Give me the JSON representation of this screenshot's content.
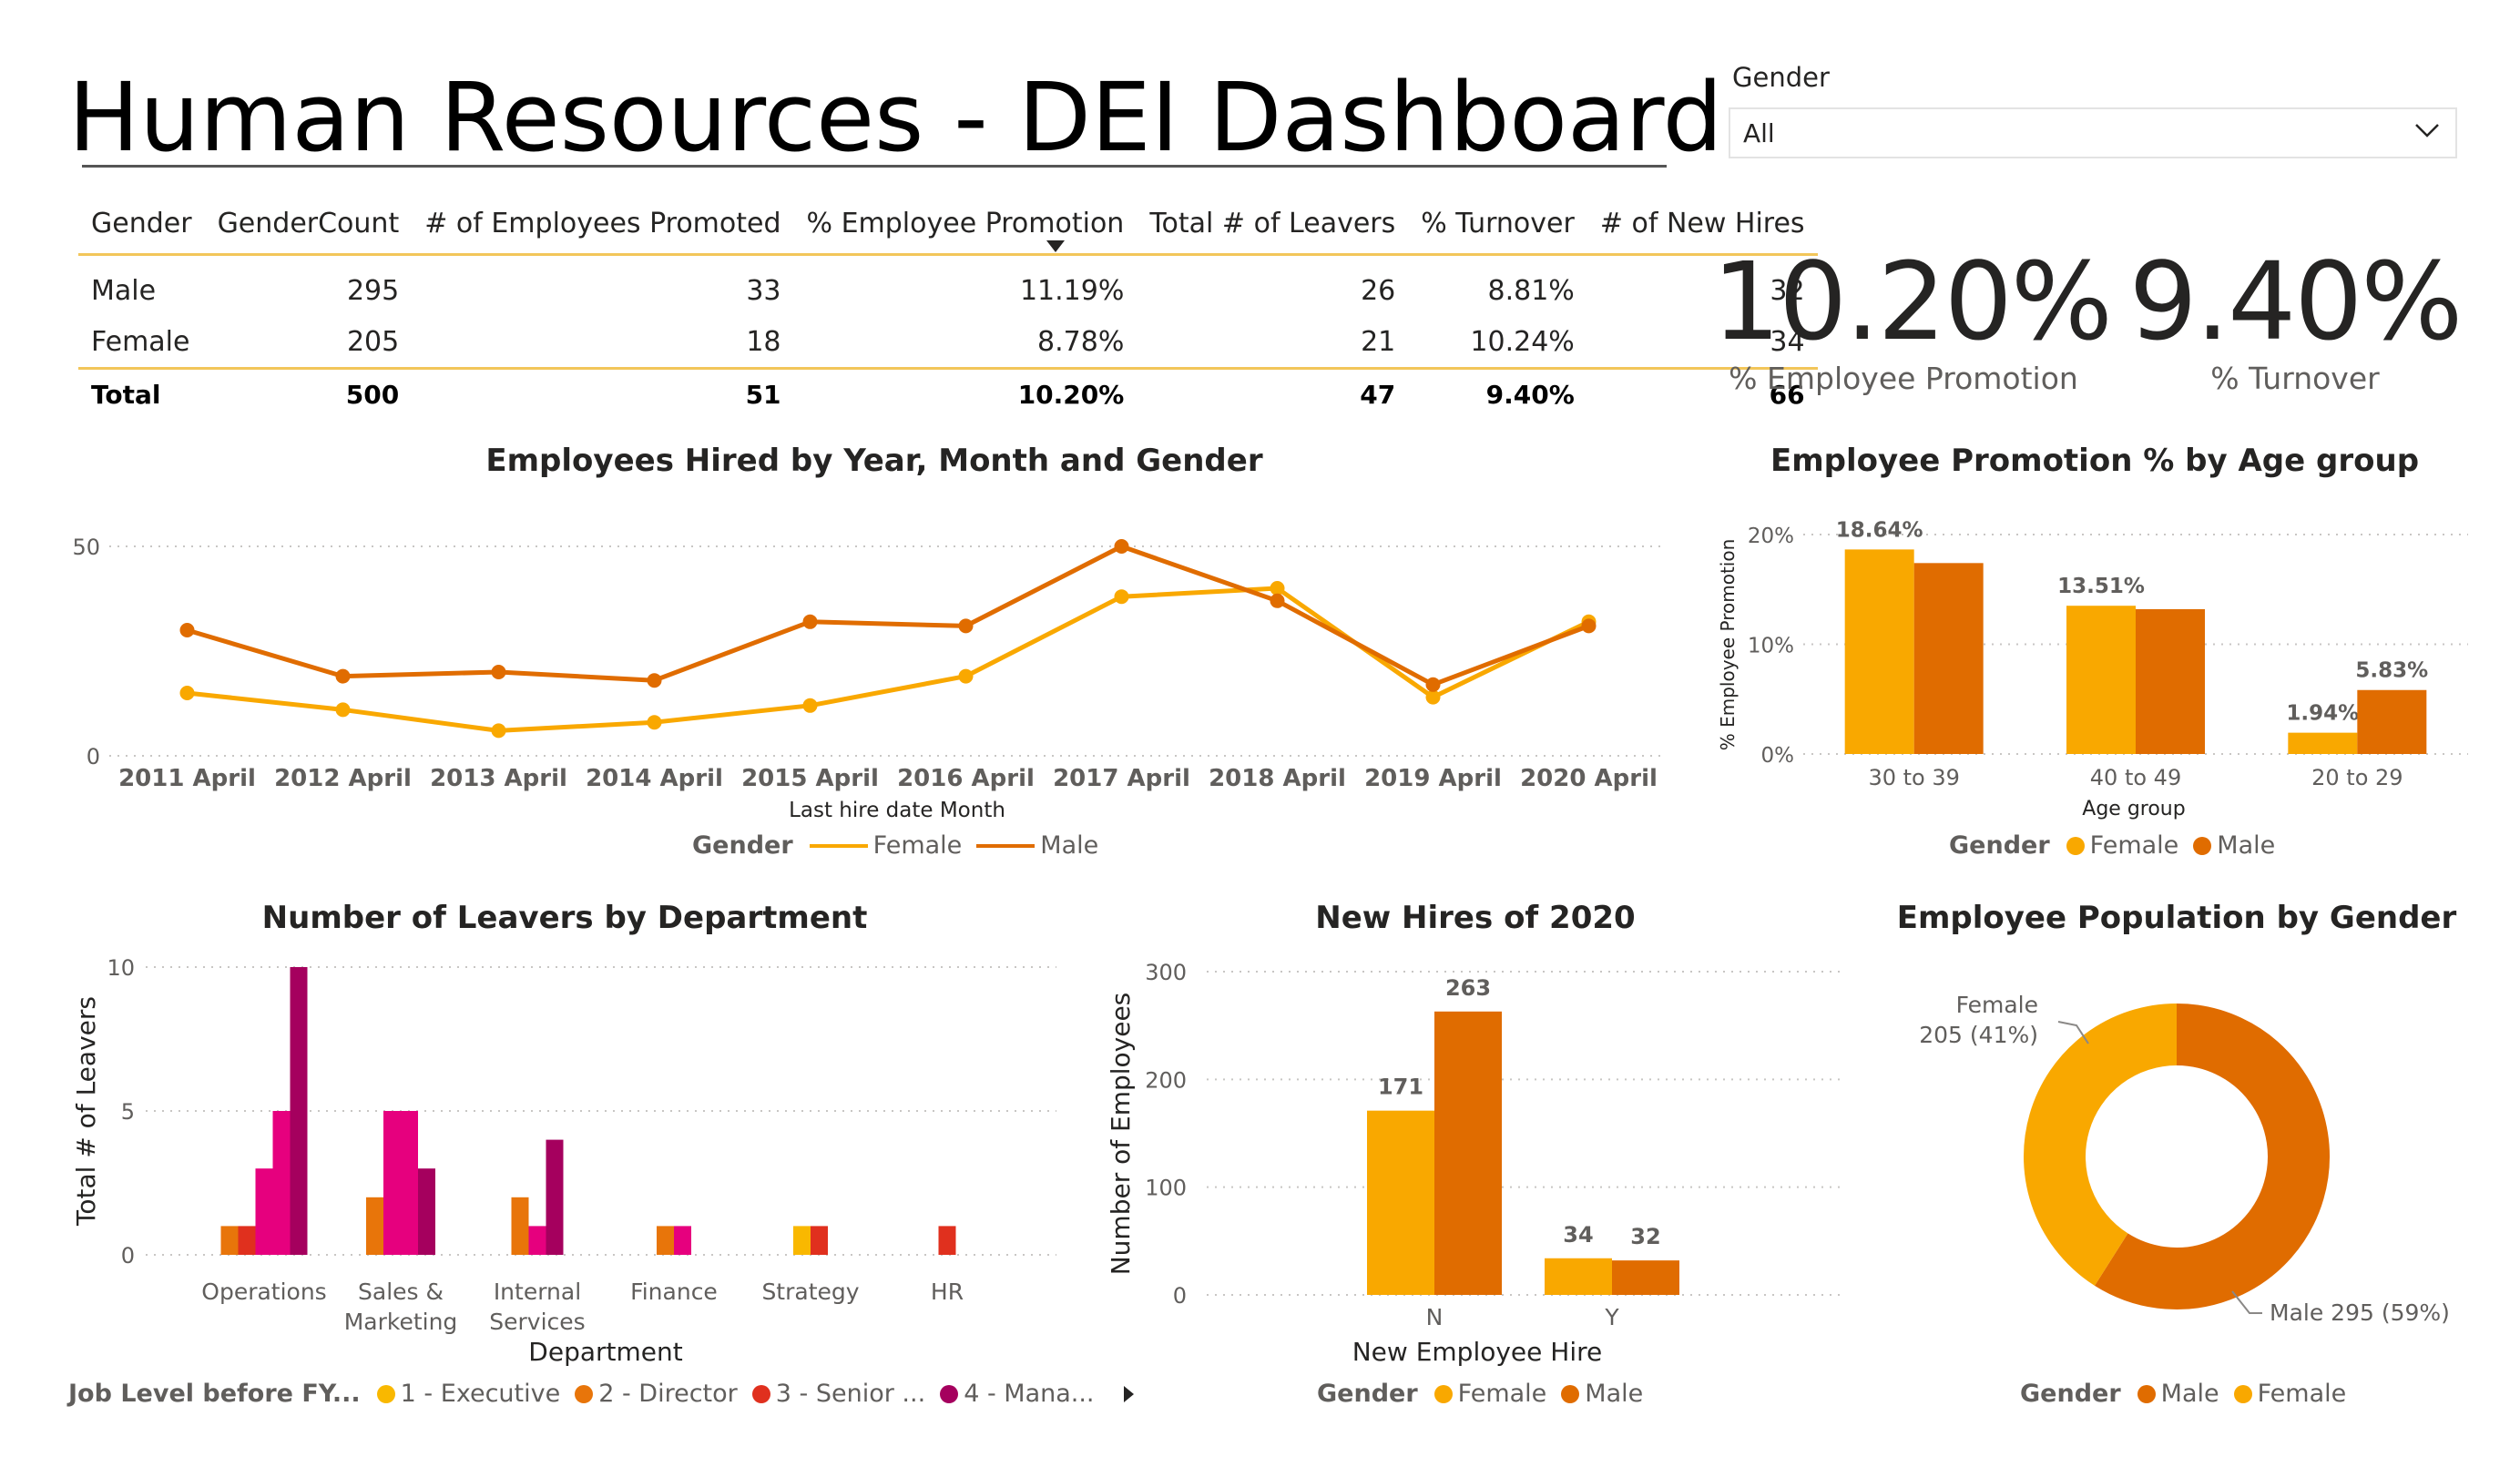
{
  "page": {
    "title": "Human Resources - DEI Dashboard"
  },
  "slicer": {
    "label": "Gender",
    "value": "All"
  },
  "table": {
    "columns": [
      "Gender",
      "GenderCount",
      "# of Employees Promoted",
      "% Employee Promotion",
      "Total # of Leavers",
      "% Turnover",
      "# of New Hires"
    ],
    "rows": [
      [
        "Male",
        "295",
        "33",
        "11.19%",
        "26",
        "8.81%",
        "32"
      ],
      [
        "Female",
        "205",
        "18",
        "8.78%",
        "21",
        "10.24%",
        "34"
      ]
    ],
    "total": [
      "Total",
      "500",
      "51",
      "10.20%",
      "47",
      "9.40%",
      "66"
    ]
  },
  "kpis": [
    {
      "value": "10.20%",
      "label": "% Employee Promotion"
    },
    {
      "value": "9.40%",
      "label": "% Turnover"
    }
  ],
  "colors": {
    "female": "#f9a800",
    "male": "#e06c00",
    "executive": "#f9b800",
    "director": "#e8750a",
    "senior": "#e0301e",
    "manager": "#e6007e",
    "mana": "#a5005e",
    "grid": "#c8c6c4",
    "axis_text": "#605e5c"
  },
  "chart_data": [
    {
      "type": "line",
      "title": "Employees Hired by Year, Month and Gender",
      "xlabel": "Last hire date Month",
      "ylabel": "",
      "x": [
        "2011 April",
        "2012 April",
        "2013 April",
        "2014 April",
        "2015 April",
        "2016 April",
        "2017 April",
        "2018 April",
        "2019 April",
        "2020 April"
      ],
      "series": [
        {
          "name": "Female",
          "values": [
            15,
            11,
            6,
            8,
            12,
            19,
            38,
            40,
            14,
            32
          ]
        },
        {
          "name": "Male",
          "values": [
            30,
            19,
            20,
            18,
            32,
            31,
            50,
            37,
            17,
            31
          ]
        }
      ],
      "ylim": [
        0,
        50
      ],
      "yticks": [
        "0",
        "50"
      ],
      "grid": true,
      "legend_title": "Gender",
      "legend_position": "bottom"
    },
    {
      "type": "bar",
      "title": "Employee Promotion % by Age group",
      "xlabel": "Age group",
      "ylabel": "% Employee Promotion",
      "categories": [
        "30 to 39",
        "40 to 49",
        "20 to 29"
      ],
      "series": [
        {
          "name": "Female",
          "values": [
            18.64,
            13.51,
            1.94
          ],
          "labels": [
            "18.64%",
            "13.51%",
            "1.94%"
          ]
        },
        {
          "name": "Male",
          "values": [
            17.4,
            13.2,
            5.83
          ],
          "labels": [
            "",
            "",
            "5.83%"
          ]
        }
      ],
      "ylim": [
        0,
        20
      ],
      "yticks": [
        "0%",
        "10%",
        "20%"
      ],
      "grid": true,
      "legend_title": "Gender",
      "legend_position": "bottom"
    },
    {
      "type": "bar",
      "title": "Number of Leavers by Department",
      "xlabel": "Department",
      "ylabel": "Total # of Leavers",
      "categories": [
        "Operations",
        "Sales & Marketing",
        "Internal Services",
        "Finance",
        "Strategy",
        "HR"
      ],
      "category_lines": [
        [
          "Operations"
        ],
        [
          "Sales &",
          "Marketing"
        ],
        [
          "Internal",
          "Services"
        ],
        [
          "Finance"
        ],
        [
          "Strategy"
        ],
        [
          "HR"
        ]
      ],
      "series": [
        {
          "name": "1 - Executive",
          "values": [
            0,
            0,
            0,
            0,
            1,
            0
          ]
        },
        {
          "name": "2 - Director",
          "values": [
            1,
            2,
            2,
            1,
            0,
            0
          ]
        },
        {
          "name": "3 - Senior ...",
          "values": [
            1,
            0,
            0,
            0,
            1,
            1
          ]
        },
        {
          "name": "4 - Mana...",
          "values": [
            3,
            5,
            0,
            1,
            0,
            0
          ]
        },
        {
          "name": "",
          "values": [
            5,
            5,
            1,
            0,
            0,
            0
          ]
        },
        {
          "name": "",
          "values": [
            10,
            3,
            4,
            0,
            0,
            0
          ]
        }
      ],
      "ylim": [
        0,
        10
      ],
      "yticks": [
        "0",
        "5",
        "10"
      ],
      "grid": true,
      "legend_title": "Job Level before FY...",
      "legend_position": "bottom"
    },
    {
      "type": "bar",
      "title": "New Hires of 2020",
      "xlabel": "New Employee Hire",
      "ylabel": "Number of Employees",
      "categories": [
        "N",
        "Y"
      ],
      "series": [
        {
          "name": "Female",
          "values": [
            171,
            34
          ]
        },
        {
          "name": "Male",
          "values": [
            263,
            32
          ]
        }
      ],
      "ylim": [
        0,
        300
      ],
      "yticks": [
        "0",
        "100",
        "200",
        "300"
      ],
      "grid": true,
      "legend_title": "Gender",
      "legend_position": "bottom"
    },
    {
      "type": "pie",
      "title": "Employee Population by Gender",
      "donut": true,
      "slices": [
        {
          "name": "Male",
          "value": 295,
          "label": "Male 295 (59%)"
        },
        {
          "name": "Female",
          "value": 205,
          "label_lines": [
            "Female",
            "205 (41%)"
          ]
        }
      ],
      "legend_title": "Gender",
      "legend_position": "bottom"
    }
  ]
}
